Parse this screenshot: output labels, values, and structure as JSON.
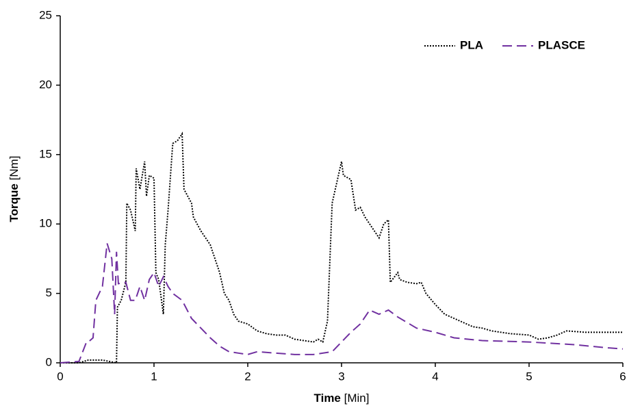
{
  "chart_data": {
    "type": "line",
    "xlabel": "Time",
    "xlabel_unit": "[Min]",
    "ylabel": "Torque",
    "ylabel_unit": "[Nm]",
    "xlim": [
      0,
      6
    ],
    "xticks": [
      0,
      1,
      2,
      3,
      4,
      5,
      6
    ],
    "ylim": [
      0,
      25
    ],
    "yticks": [
      0,
      5,
      10,
      15,
      20,
      25
    ],
    "legend": "top-right",
    "series": [
      {
        "name": "PLA",
        "color": "#000000",
        "dash": "dotted",
        "x": [
          0,
          0.2,
          0.3,
          0.45,
          0.6,
          0.61,
          0.65,
          0.7,
          0.71,
          0.75,
          0.8,
          0.81,
          0.85,
          0.9,
          0.92,
          0.95,
          1.0,
          1.02,
          1.05,
          1.1,
          1.12,
          1.15,
          1.2,
          1.25,
          1.3,
          1.32,
          1.4,
          1.42,
          1.5,
          1.55,
          1.6,
          1.65,
          1.7,
          1.75,
          1.8,
          1.85,
          1.9,
          2.0,
          2.1,
          2.2,
          2.3,
          2.4,
          2.5,
          2.6,
          2.7,
          2.75,
          2.8,
          2.85,
          2.9,
          2.95,
          3.0,
          3.02,
          3.1,
          3.15,
          3.2,
          3.25,
          3.3,
          3.35,
          3.4,
          3.45,
          3.5,
          3.52,
          3.6,
          3.62,
          3.7,
          3.8,
          3.85,
          3.9,
          4.0,
          4.1,
          4.2,
          4.3,
          4.4,
          4.5,
          4.6,
          4.8,
          5.0,
          5.1,
          5.2,
          5.3,
          5.4,
          5.6,
          5.8,
          6.0
        ],
        "values": [
          0,
          0,
          0.2,
          0.2,
          0,
          4,
          4.5,
          5.8,
          11.5,
          11,
          9.5,
          14,
          12.5,
          14.5,
          12,
          13.5,
          13.3,
          6.5,
          6,
          3.5,
          8.5,
          11,
          15.8,
          16,
          16.5,
          12.5,
          11.5,
          10.5,
          9.5,
          9,
          8.5,
          7.5,
          6.5,
          5,
          4.5,
          3.5,
          3,
          2.8,
          2.3,
          2.1,
          2.0,
          2.0,
          1.7,
          1.6,
          1.5,
          1.7,
          1.5,
          3,
          11.5,
          13,
          14.5,
          13.5,
          13.2,
          11,
          11.2,
          10.5,
          10,
          9.5,
          9,
          10,
          10.3,
          5.8,
          6.5,
          6,
          5.8,
          5.7,
          5.8,
          5,
          4.2,
          3.5,
          3.2,
          2.9,
          2.6,
          2.5,
          2.3,
          2.1,
          2.0,
          1.7,
          1.8,
          2.0,
          2.3,
          2.2,
          2.2,
          2.2
        ]
      },
      {
        "name": "PLASCE",
        "color": "#7030a0",
        "dash": "dashed",
        "x": [
          0,
          0.2,
          0.28,
          0.3,
          0.35,
          0.38,
          0.45,
          0.5,
          0.55,
          0.58,
          0.6,
          0.62,
          0.7,
          0.75,
          0.8,
          0.85,
          0.9,
          0.95,
          1.0,
          1.05,
          1.1,
          1.15,
          1.2,
          1.3,
          1.4,
          1.5,
          1.6,
          1.7,
          1.8,
          1.9,
          2.0,
          2.1,
          2.3,
          2.5,
          2.7,
          2.9,
          3.0,
          3.1,
          3.2,
          3.3,
          3.4,
          3.5,
          3.6,
          3.8,
          4.0,
          4.2,
          4.5,
          5.0,
          5.5,
          5.8,
          6.0
        ],
        "values": [
          0,
          0.1,
          1.5,
          1.5,
          1.8,
          4.5,
          5.5,
          8.6,
          7.5,
          3.5,
          8,
          5.7,
          5.8,
          4.5,
          4.5,
          5.5,
          4.5,
          6,
          6.5,
          5.5,
          6.2,
          5.5,
          5,
          4.5,
          3.2,
          2.5,
          1.8,
          1.2,
          0.8,
          0.7,
          0.6,
          0.8,
          0.7,
          0.6,
          0.6,
          0.8,
          1.5,
          2.2,
          2.8,
          3.8,
          3.5,
          3.8,
          3.3,
          2.5,
          2.2,
          1.8,
          1.6,
          1.5,
          1.3,
          1.1,
          1.0
        ]
      }
    ]
  }
}
